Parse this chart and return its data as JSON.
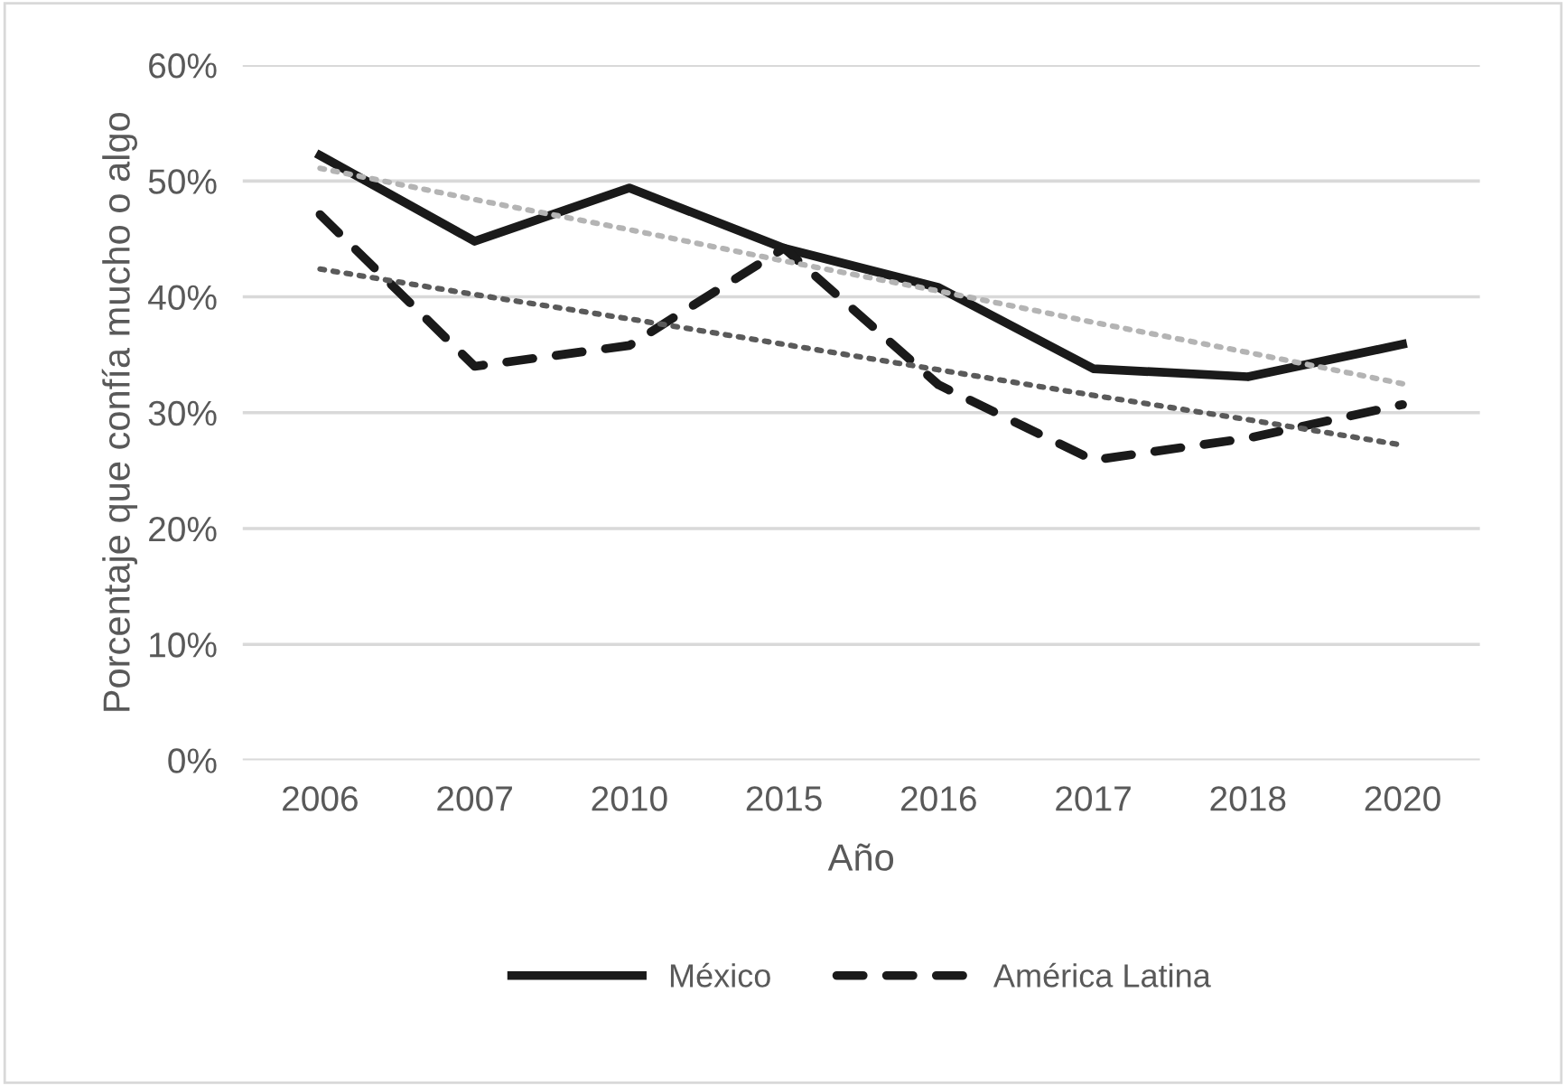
{
  "chart_data": {
    "type": "line",
    "xlabel": "Año",
    "ylabel": "Porcentaje que confía mucho o algo",
    "categories": [
      "2006",
      "2007",
      "2010",
      "2015",
      "2016",
      "2017",
      "2018",
      "2020"
    ],
    "series": [
      {
        "name": "México",
        "color": "#1a1a1a",
        "line_style": "solid",
        "values": [
          52.2,
          44.8,
          49.4,
          44.2,
          40.8,
          33.8,
          33.1,
          35.9
        ]
      },
      {
        "name": "América Latina",
        "color": "#1a1a1a",
        "line_style": "dashed",
        "values": [
          47.1,
          34.0,
          35.8,
          44.2,
          32.4,
          25.9,
          27.8,
          30.7
        ]
      },
      {
        "color": "#b4b4b4",
        "line_style": "dotted",
        "values": [
          51.1,
          48.4,
          45.8,
          43.1,
          40.5,
          37.8,
          35.2,
          32.5
        ]
      },
      {
        "color": "#5a5a5a",
        "line_style": "dotted",
        "values": [
          42.4,
          40.2,
          38.1,
          35.9,
          33.7,
          31.5,
          29.4,
          27.2
        ]
      }
    ],
    "ylim": [
      0,
      60
    ],
    "yticks": [
      {
        "value": 0,
        "label": "0%"
      },
      {
        "value": 10,
        "label": "10%"
      },
      {
        "value": 20,
        "label": "20%"
      },
      {
        "value": 30,
        "label": "30%"
      },
      {
        "value": 40,
        "label": "40%"
      },
      {
        "value": 50,
        "label": "50%"
      },
      {
        "value": 60,
        "label": "60%"
      }
    ],
    "grid": "y",
    "legend": "bottom",
    "marker": "none"
  }
}
